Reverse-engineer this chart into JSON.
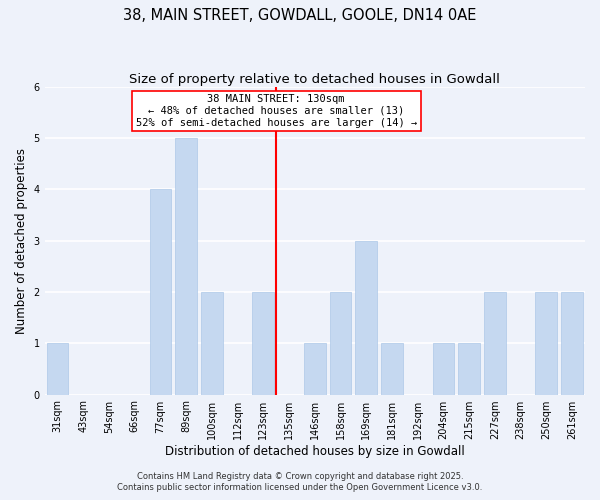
{
  "title": "38, MAIN STREET, GOWDALL, GOOLE, DN14 0AE",
  "subtitle": "Size of property relative to detached houses in Gowdall",
  "xlabel": "Distribution of detached houses by size in Gowdall",
  "ylabel": "Number of detached properties",
  "footer1": "Contains HM Land Registry data © Crown copyright and database right 2025.",
  "footer2": "Contains public sector information licensed under the Open Government Licence v3.0.",
  "categories": [
    "31sqm",
    "43sqm",
    "54sqm",
    "66sqm",
    "77sqm",
    "89sqm",
    "100sqm",
    "112sqm",
    "123sqm",
    "135sqm",
    "146sqm",
    "158sqm",
    "169sqm",
    "181sqm",
    "192sqm",
    "204sqm",
    "215sqm",
    "227sqm",
    "238sqm",
    "250sqm",
    "261sqm"
  ],
  "values": [
    1,
    0,
    0,
    0,
    4,
    5,
    2,
    0,
    2,
    0,
    1,
    2,
    3,
    1,
    0,
    1,
    1,
    2,
    0,
    2,
    2
  ],
  "bar_color": "#c5d8f0",
  "bar_edgecolor": "#adc8e8",
  "red_line_x": 9.0,
  "annotation_line1": "38 MAIN STREET: 130sqm",
  "annotation_line2": "← 48% of detached houses are smaller (13)",
  "annotation_line3": "52% of semi-detached houses are larger (14) →",
  "ylim": [
    0,
    6
  ],
  "yticks": [
    0,
    1,
    2,
    3,
    4,
    5,
    6
  ],
  "background_color": "#eef2fa",
  "plot_bg_color": "#eef2fa",
  "grid_color": "#ffffff",
  "title_fontsize": 10.5,
  "subtitle_fontsize": 9.5,
  "axis_label_fontsize": 8.5,
  "tick_fontsize": 7.0,
  "footer_fontsize": 6.0
}
